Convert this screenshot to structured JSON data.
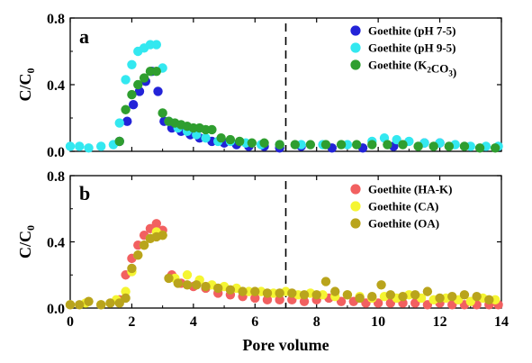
{
  "chart_data": [
    {
      "type": "scatter",
      "panel_label": "a",
      "xlim": [
        0,
        14
      ],
      "ylim": [
        0,
        0.8
      ],
      "xticks": [
        0,
        2,
        4,
        6,
        8,
        10,
        12,
        14
      ],
      "yticks": [
        0.0,
        0.4,
        0.8
      ],
      "ytick_labels": [
        "0.0",
        "0.4",
        "0.8"
      ],
      "xlabel": "",
      "ylabel": "C/C0",
      "legend_position": "top-right",
      "vline_x": 7,
      "series": [
        {
          "name": "Goethite (pH 7-5)",
          "color": "#2323d8",
          "x": [
            1.6,
            1.85,
            2.05,
            2.25,
            2.45,
            2.65,
            2.85,
            3.05,
            3.3,
            3.6,
            3.9,
            4.2,
            4.6,
            5.0,
            5.4,
            5.8,
            6.3,
            6.8,
            7.5,
            8.5,
            9.5,
            10.5,
            11.5,
            12.0
          ],
          "y": [
            0.06,
            0.18,
            0.28,
            0.36,
            0.42,
            0.48,
            0.36,
            0.18,
            0.14,
            0.12,
            0.1,
            0.08,
            0.06,
            0.05,
            0.04,
            0.03,
            0.03,
            0.02,
            0.03,
            0.02,
            0.02,
            0.03,
            0.05,
            0.05
          ]
        },
        {
          "name": "Goethite (pH 9-5)",
          "color": "#33e8f0",
          "x": [
            0.0,
            0.3,
            0.6,
            1.0,
            1.4,
            1.6,
            1.8,
            2.0,
            2.2,
            2.4,
            2.6,
            2.8,
            3.0,
            3.2,
            3.5,
            3.8,
            4.1,
            4.4,
            4.8,
            5.2,
            5.7,
            6.2,
            6.8,
            7.5,
            8.2,
            9.0,
            9.8,
            10.2,
            10.6,
            11.0,
            11.5,
            12.0,
            12.5,
            13.0,
            13.5,
            13.9
          ],
          "y": [
            0.03,
            0.03,
            0.02,
            0.03,
            0.04,
            0.17,
            0.43,
            0.52,
            0.6,
            0.62,
            0.64,
            0.64,
            0.5,
            0.18,
            0.14,
            0.12,
            0.1,
            0.08,
            0.06,
            0.06,
            0.05,
            0.04,
            0.04,
            0.04,
            0.04,
            0.04,
            0.06,
            0.08,
            0.07,
            0.06,
            0.05,
            0.05,
            0.04,
            0.03,
            0.03,
            0.03
          ]
        },
        {
          "name": "Goethite (K2CO3)",
          "color": "#2f9e2f",
          "x": [
            1.6,
            1.8,
            2.0,
            2.2,
            2.4,
            2.6,
            2.8,
            3.0,
            3.2,
            3.4,
            3.6,
            3.8,
            4.0,
            4.2,
            4.4,
            4.6,
            4.9,
            5.2,
            5.5,
            5.9,
            6.3,
            6.8,
            7.3,
            7.8,
            8.3,
            8.8,
            9.3,
            9.8,
            10.3,
            10.8,
            11.3,
            11.8,
            12.3,
            12.8,
            13.3,
            13.8
          ],
          "y": [
            0.06,
            0.25,
            0.34,
            0.4,
            0.44,
            0.48,
            0.48,
            0.23,
            0.18,
            0.17,
            0.16,
            0.15,
            0.14,
            0.14,
            0.13,
            0.13,
            0.08,
            0.07,
            0.06,
            0.05,
            0.05,
            0.04,
            0.04,
            0.04,
            0.04,
            0.04,
            0.04,
            0.04,
            0.04,
            0.04,
            0.03,
            0.03,
            0.03,
            0.03,
            0.02,
            0.02
          ]
        }
      ]
    },
    {
      "type": "scatter",
      "panel_label": "b",
      "xlim": [
        0,
        14
      ],
      "ylim": [
        0,
        0.8
      ],
      "xticks": [
        0,
        2,
        4,
        6,
        8,
        10,
        12,
        14
      ],
      "xtick_labels": [
        "0",
        "2",
        "4",
        "6",
        "8",
        "10",
        "12",
        "14"
      ],
      "yticks": [
        0.0,
        0.4,
        0.8
      ],
      "ytick_labels": [
        "0.0",
        "0.4",
        "0.8"
      ],
      "xlabel": "Pore volume",
      "ylabel": "C/C0",
      "legend_position": "top-right",
      "vline_x": 7,
      "series": [
        {
          "name": "Goethite (HA-K)",
          "color": "#f26060",
          "x": [
            1.6,
            1.8,
            2.0,
            2.2,
            2.4,
            2.6,
            2.8,
            3.0,
            3.3,
            3.6,
            4.0,
            4.4,
            4.8,
            5.2,
            5.6,
            6.0,
            6.4,
            6.8,
            7.2,
            7.6,
            8.0,
            8.4,
            8.8,
            9.2,
            9.6,
            10.0,
            10.4,
            10.8,
            11.2,
            11.6,
            12.0,
            12.4,
            12.8,
            13.2,
            13.6,
            13.9
          ],
          "y": [
            0.05,
            0.2,
            0.3,
            0.38,
            0.44,
            0.48,
            0.51,
            0.47,
            0.2,
            0.15,
            0.13,
            0.12,
            0.09,
            0.08,
            0.07,
            0.06,
            0.05,
            0.05,
            0.05,
            0.04,
            0.05,
            0.06,
            0.04,
            0.04,
            0.03,
            0.03,
            0.03,
            0.03,
            0.03,
            0.02,
            0.03,
            0.02,
            0.02,
            0.02,
            0.02,
            0.02
          ]
        },
        {
          "name": "Goethite (CA)",
          "color": "#f5f532",
          "x": [
            0.0,
            0.5,
            1.0,
            1.5,
            1.8,
            2.0,
            2.2,
            2.4,
            2.6,
            2.8,
            3.0,
            3.4,
            3.8,
            4.2,
            4.6,
            5.0,
            5.4,
            5.8,
            6.2,
            6.6,
            7.0,
            7.4,
            7.8,
            8.2,
            8.6,
            9.0,
            9.4,
            9.8,
            10.2,
            10.6,
            11.0,
            11.4,
            11.8,
            12.2,
            12.6,
            13.0,
            13.4,
            13.8
          ],
          "y": [
            0.02,
            0.03,
            0.02,
            0.05,
            0.1,
            0.22,
            0.32,
            0.38,
            0.42,
            0.46,
            0.44,
            0.18,
            0.2,
            0.17,
            0.14,
            0.13,
            0.12,
            0.1,
            0.1,
            0.09,
            0.1,
            0.08,
            0.09,
            0.08,
            0.07,
            0.08,
            0.07,
            0.06,
            0.07,
            0.06,
            0.08,
            0.06,
            0.05,
            0.06,
            0.05,
            0.04,
            0.06,
            0.05
          ]
        },
        {
          "name": "Goethite (OA)",
          "color": "#b9a41c",
          "x": [
            0.0,
            0.3,
            0.6,
            1.0,
            1.3,
            1.6,
            1.8,
            2.0,
            2.2,
            2.4,
            2.6,
            2.8,
            3.0,
            3.2,
            3.5,
            3.8,
            4.1,
            4.4,
            4.8,
            5.2,
            5.6,
            6.0,
            6.4,
            6.8,
            7.2,
            7.6,
            8.0,
            8.3,
            8.6,
            9.0,
            9.4,
            9.8,
            10.1,
            10.4,
            10.8,
            11.2,
            11.6,
            12.0,
            12.4,
            12.8,
            13.2,
            13.6
          ],
          "y": [
            0.02,
            0.02,
            0.04,
            0.02,
            0.03,
            0.03,
            0.06,
            0.24,
            0.32,
            0.38,
            0.42,
            0.43,
            0.44,
            0.18,
            0.15,
            0.14,
            0.14,
            0.13,
            0.12,
            0.11,
            0.1,
            0.1,
            0.09,
            0.09,
            0.09,
            0.08,
            0.08,
            0.16,
            0.1,
            0.08,
            0.06,
            0.07,
            0.14,
            0.08,
            0.07,
            0.08,
            0.1,
            0.06,
            0.07,
            0.08,
            0.07,
            0.05
          ]
        }
      ]
    }
  ]
}
